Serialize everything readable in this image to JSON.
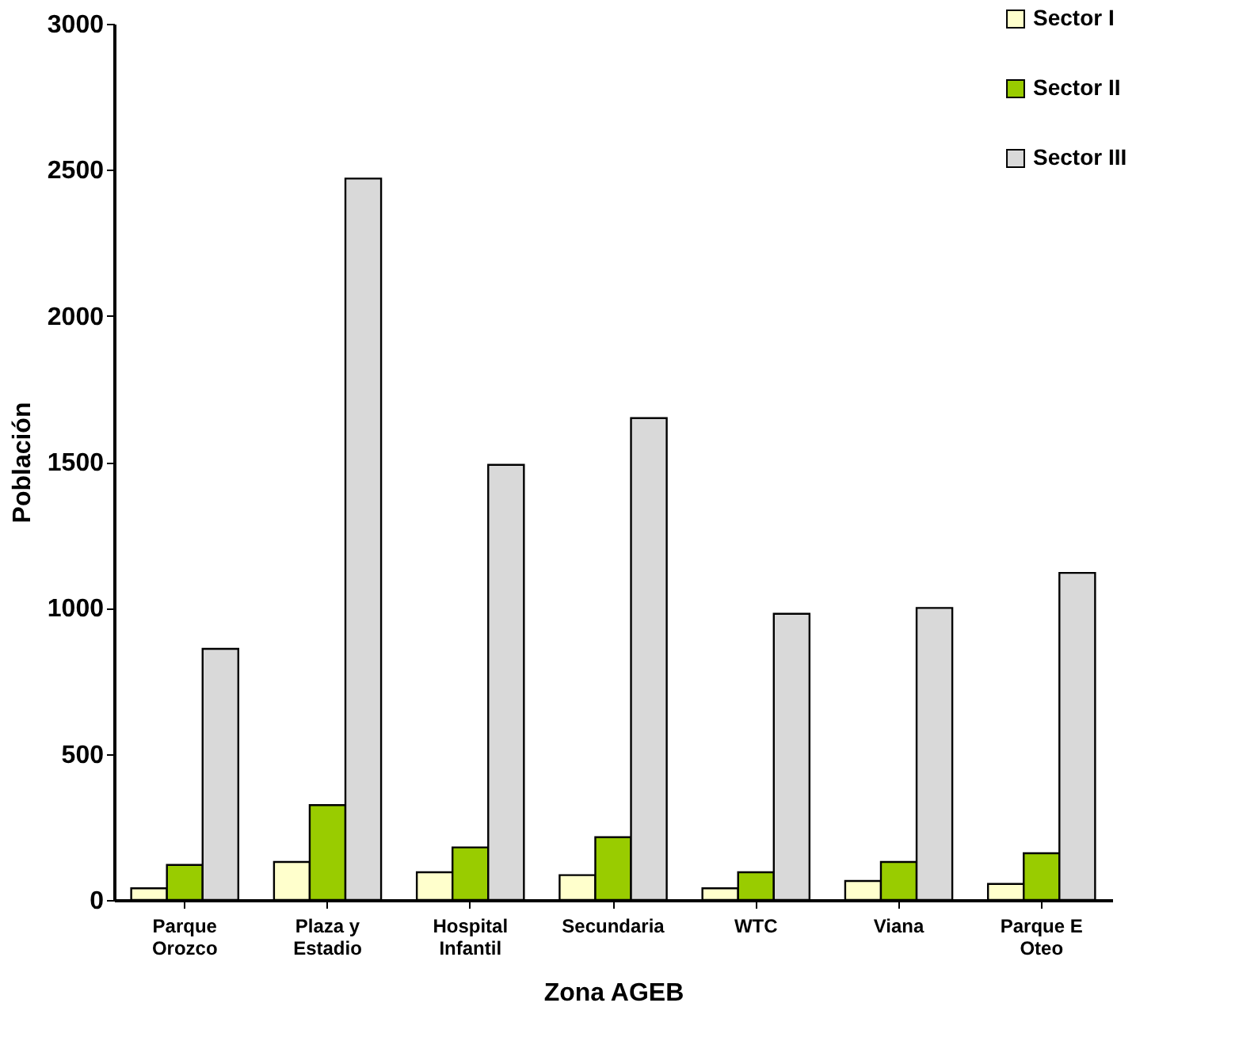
{
  "chart_data": {
    "type": "bar",
    "xlabel": "Zona AGEB",
    "ylabel": "Población",
    "categories": [
      "Parque Orozco",
      "Plaza y Estadio",
      "Hospital Infantil",
      "Secundaria",
      "WTC",
      "Viana",
      "Parque E Oteo"
    ],
    "series": [
      {
        "name": "Sector I",
        "color": "#ffffcc",
        "values": [
          40,
          130,
          95,
          85,
          40,
          65,
          55
        ]
      },
      {
        "name": "Sector II",
        "color": "#99cc00",
        "values": [
          120,
          325,
          180,
          215,
          95,
          130,
          160
        ]
      },
      {
        "name": "Sector III",
        "color": "#d9d9d9",
        "values": [
          860,
          2470,
          1490,
          1650,
          980,
          1000,
          1120
        ]
      }
    ],
    "ylim": [
      0,
      3000
    ],
    "yticks": [
      0,
      500,
      1000,
      1500,
      2000,
      2500,
      3000
    ],
    "grid": false,
    "legend": "top right"
  }
}
